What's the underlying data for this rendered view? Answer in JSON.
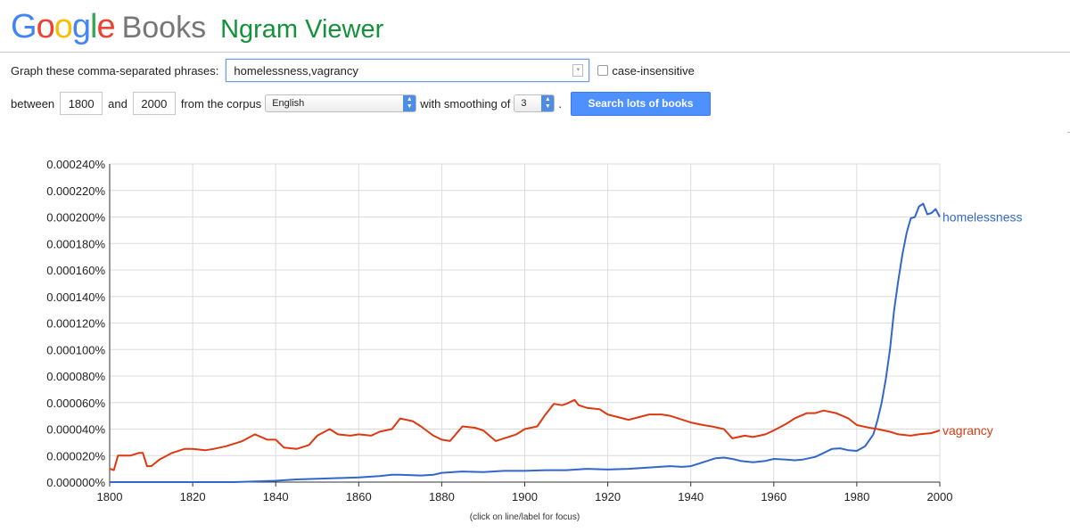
{
  "header": {
    "logo_letters": [
      {
        "ch": "G",
        "color": "#4285F4"
      },
      {
        "ch": "o",
        "color": "#EA4335"
      },
      {
        "ch": "o",
        "color": "#FBBC05"
      },
      {
        "ch": "g",
        "color": "#4285F4"
      },
      {
        "ch": "l",
        "color": "#34A853"
      },
      {
        "ch": "e",
        "color": "#EA4335"
      }
    ],
    "books": "Books",
    "title": "Ngram Viewer"
  },
  "form": {
    "graph_label": "Graph these comma-separated phrases:",
    "query_value": "homelessness,vagrancy",
    "case_insensitive_label": "case-insensitive",
    "between_label": "between",
    "start_year": "1800",
    "and_label": "and",
    "end_year": "2000",
    "corpus_label": "from the corpus",
    "corpus_value": "English",
    "smoothing_label": "with smoothing of",
    "smoothing_value": "3",
    "period": ".",
    "search_button": "Search lots of books"
  },
  "chart_data": {
    "type": "line",
    "xlim": [
      1800,
      2000
    ],
    "ylim": [
      0,
      0.00024
    ],
    "x_ticks": [
      1800,
      1820,
      1840,
      1860,
      1880,
      1900,
      1920,
      1940,
      1960,
      1980,
      2000
    ],
    "y_tick_labels": [
      "0.000000%",
      "0.000020%",
      "0.000040%",
      "0.000060%",
      "0.000080%",
      "0.000100%",
      "0.000120%",
      "0.000140%",
      "0.000160%",
      "0.000180%",
      "0.000200%",
      "0.000220%",
      "0.000240%"
    ],
    "y_ticks": [
      0,
      2e-05,
      4e-05,
      6e-05,
      8e-05,
      0.0001,
      0.00012,
      0.00014,
      0.00016,
      0.00018,
      0.0002,
      0.00022,
      0.00024
    ],
    "grid": true,
    "footnote": "(click on line/label for focus)",
    "series": [
      {
        "name": "homelessness",
        "color": "#3366CC",
        "x": [
          1800,
          1810,
          1820,
          1830,
          1835,
          1840,
          1845,
          1850,
          1855,
          1860,
          1865,
          1868,
          1870,
          1875,
          1878,
          1880,
          1885,
          1890,
          1895,
          1900,
          1905,
          1910,
          1915,
          1920,
          1925,
          1930,
          1935,
          1938,
          1940,
          1942,
          1944,
          1946,
          1948,
          1950,
          1952,
          1955,
          1958,
          1960,
          1963,
          1965,
          1967,
          1970,
          1972,
          1974,
          1976,
          1978,
          1980,
          1982,
          1984,
          1985,
          1986,
          1987,
          1988,
          1989,
          1990,
          1991,
          1992,
          1993,
          1994,
          1995,
          1996,
          1997,
          1998,
          1999,
          2000
        ],
        "y": [
          0,
          0,
          0,
          0,
          5e-07,
          1e-06,
          2e-06,
          2.5e-06,
          3e-06,
          3.5e-06,
          4.5e-06,
          5.5e-06,
          5.5e-06,
          5e-06,
          5.5e-06,
          7e-06,
          8e-06,
          7.5e-06,
          8.5e-06,
          8.5e-06,
          9e-06,
          9e-06,
          1e-05,
          9.5e-06,
          1e-05,
          1.1e-05,
          1.2e-05,
          1.15e-05,
          1.2e-05,
          1.4e-05,
          1.6e-05,
          1.8e-05,
          1.85e-05,
          1.75e-05,
          1.6e-05,
          1.5e-05,
          1.6e-05,
          1.75e-05,
          1.7e-05,
          1.65e-05,
          1.7e-05,
          1.9e-05,
          2.2e-05,
          2.5e-05,
          2.55e-05,
          2.4e-05,
          2.35e-05,
          2.7e-05,
          3.6e-05,
          4.7e-05,
          6e-05,
          7.8e-05,
          0.0001,
          0.00013,
          0.000152,
          0.000172,
          0.000188,
          0.000199,
          0.0002,
          0.000208,
          0.00021,
          0.000202,
          0.000203,
          0.000206,
          0.0002
        ]
      },
      {
        "name": "vagrancy",
        "color": "#DC3912",
        "x": [
          1800,
          1801,
          1802,
          1803,
          1805,
          1807,
          1808,
          1809,
          1810,
          1812,
          1815,
          1818,
          1820,
          1823,
          1825,
          1828,
          1830,
          1832,
          1835,
          1838,
          1840,
          1842,
          1845,
          1848,
          1850,
          1853,
          1855,
          1858,
          1860,
          1863,
          1865,
          1868,
          1870,
          1873,
          1875,
          1878,
          1880,
          1882,
          1885,
          1888,
          1890,
          1893,
          1895,
          1898,
          1900,
          1903,
          1905,
          1907,
          1909,
          1910,
          1912,
          1913,
          1915,
          1918,
          1920,
          1925,
          1930,
          1933,
          1935,
          1938,
          1940,
          1943,
          1945,
          1948,
          1950,
          1953,
          1955,
          1958,
          1960,
          1963,
          1965,
          1968,
          1970,
          1972,
          1975,
          1978,
          1980,
          1983,
          1985,
          1988,
          1990,
          1993,
          1995,
          1998,
          2000
        ],
        "y": [
          1e-05,
          9e-06,
          2e-05,
          2e-05,
          2e-05,
          2.2e-05,
          2.2e-05,
          1.2e-05,
          1.2e-05,
          1.7e-05,
          2.2e-05,
          2.5e-05,
          2.5e-05,
          2.4e-05,
          2.5e-05,
          2.7e-05,
          2.9e-05,
          3.1e-05,
          3.6e-05,
          3.2e-05,
          3.2e-05,
          2.6e-05,
          2.5e-05,
          2.8e-05,
          3.5e-05,
          4e-05,
          3.6e-05,
          3.5e-05,
          3.6e-05,
          3.5e-05,
          3.8e-05,
          4e-05,
          4.8e-05,
          4.6e-05,
          4.2e-05,
          3.5e-05,
          3.2e-05,
          3.1e-05,
          4.2e-05,
          4.1e-05,
          3.9e-05,
          3.1e-05,
          3.3e-05,
          3.6e-05,
          4e-05,
          4.2e-05,
          5.1e-05,
          5.9e-05,
          5.8e-05,
          5.9e-05,
          6.2e-05,
          5.8e-05,
          5.6e-05,
          5.5e-05,
          5.1e-05,
          4.7e-05,
          5.1e-05,
          5.1e-05,
          5e-05,
          4.7e-05,
          4.5e-05,
          4.3e-05,
          4.2e-05,
          4e-05,
          3.3e-05,
          3.5e-05,
          3.4e-05,
          3.6e-05,
          3.9e-05,
          4.4e-05,
          4.8e-05,
          5.2e-05,
          5.2e-05,
          5.4e-05,
          5.2e-05,
          4.8e-05,
          4.3e-05,
          4.1e-05,
          4e-05,
          3.8e-05,
          3.6e-05,
          3.5e-05,
          3.6e-05,
          3.7e-05,
          3.9e-05
        ]
      }
    ]
  }
}
